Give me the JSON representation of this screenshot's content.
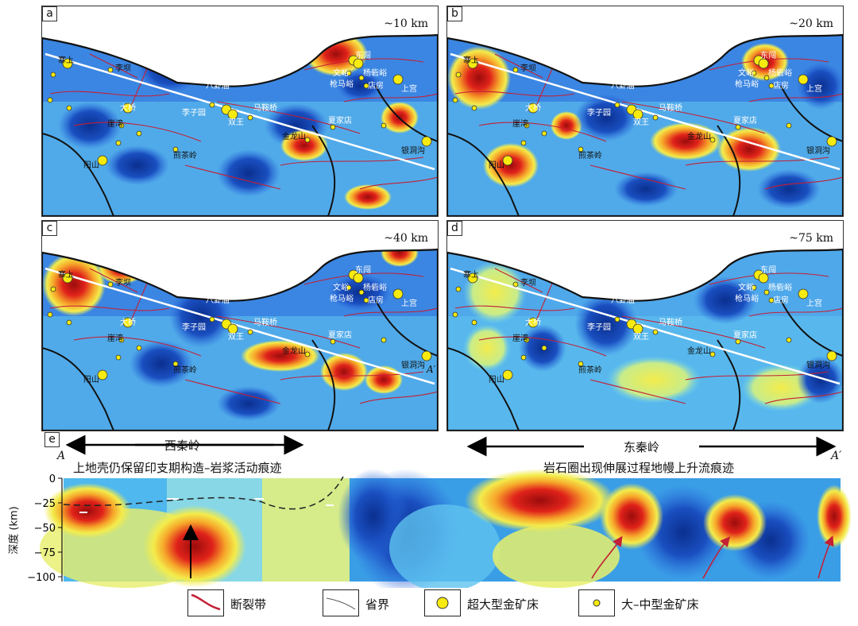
{
  "panels": [
    {
      "label": "a",
      "depth": "~10 km"
    },
    {
      "label": "b",
      "depth": "~20 km"
    },
    {
      "label": "c",
      "depth": "~40 km"
    },
    {
      "label": "d",
      "depth": "~75 km"
    }
  ],
  "towns": {
    "zhaishang": "寨上",
    "liba": "李坝",
    "daqiao": "大桥",
    "yawan": "崖湾",
    "yangshan": "阳山",
    "jianchaling": "煎茶岭",
    "liziyuan": "李子园",
    "baguamiao": "八卦庙",
    "shuangwang": "双王",
    "maanqiao": "马鞍桥",
    "jinlongshan": "金龙山",
    "xiajiadian": "夏家店",
    "dongchuang": "东闯",
    "wenyu": "文峪",
    "yangzhaiyu": "杨砦峪",
    "qiangmaao": "枪马峪",
    "dianfang": "店房",
    "shanggong": "上宫",
    "yindonggou": "银洞沟"
  },
  "section": {
    "label": "e",
    "west_region": "西秦岭",
    "east_region": "东秦岭",
    "west_note": "上地壳仍保留印支期构造–岩浆活动痕迹",
    "east_note": "岩石圈出现伸展过程地幔上升流痕迹",
    "point_a": "A",
    "point_a_prime": "A′",
    "ylabel": "深度 (km)",
    "yticks": [
      "0",
      "−25",
      "−50",
      "−75",
      "−100"
    ]
  },
  "legend": {
    "fault": "断裂带",
    "boundary": "省界",
    "super_deposit": "超大型金矿床",
    "large_deposit": "大–中型金矿床"
  },
  "colors": {
    "deep_blue": "#0a2f8f",
    "blue": "#2d6ee0",
    "cyan": "#6fd3ee",
    "yellow": "#f3ec4c",
    "red": "#e0221a",
    "dark_red": "#9a0c0c",
    "fault": "#c41f35",
    "deposit": "#f7ea0f"
  }
}
